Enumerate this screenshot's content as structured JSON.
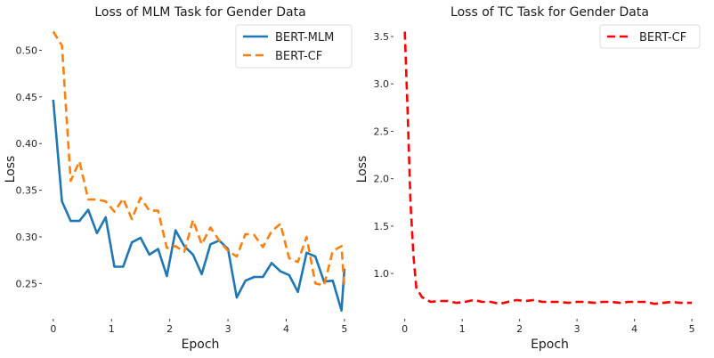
{
  "chart_data": [
    {
      "type": "line",
      "title": "Loss of MLM Task for Gender Data",
      "xlabel": "Epoch",
      "ylabel": "Loss",
      "xlim": [
        -0.15,
        5.2
      ],
      "ylim": [
        0.215,
        0.53
      ],
      "xticks": [
        "0",
        "1",
        "2",
        "3",
        "4",
        "5"
      ],
      "yticks": [
        "0.25",
        "0.30",
        "0.35",
        "0.40",
        "0.45",
        "0.50"
      ],
      "grid": false,
      "legend": "top-right",
      "series": [
        {
          "name": "BERT-MLM",
          "color": "#1f77b4",
          "style": "solid",
          "x": [
            0.0,
            0.15,
            0.3,
            0.45,
            0.6,
            0.75,
            0.9,
            1.05,
            1.2,
            1.35,
            1.5,
            1.65,
            1.8,
            1.95,
            2.1,
            2.25,
            2.4,
            2.55,
            2.7,
            2.85,
            3.0,
            3.15,
            3.3,
            3.45,
            3.6,
            3.75,
            3.9,
            4.05,
            4.2,
            4.35,
            4.5,
            4.65,
            4.8,
            4.95,
            5.0
          ],
          "y": [
            0.447,
            0.338,
            0.317,
            0.317,
            0.329,
            0.304,
            0.321,
            0.268,
            0.268,
            0.294,
            0.299,
            0.281,
            0.287,
            0.258,
            0.307,
            0.29,
            0.281,
            0.26,
            0.292,
            0.296,
            0.287,
            0.235,
            0.253,
            0.257,
            0.257,
            0.272,
            0.263,
            0.259,
            0.241,
            0.283,
            0.279,
            0.252,
            0.253,
            0.221,
            0.266
          ]
        },
        {
          "name": "BERT-CF",
          "color": "#ff7f0e",
          "style": "dashed",
          "x": [
            0.0,
            0.15,
            0.3,
            0.45,
            0.6,
            0.75,
            0.9,
            1.05,
            1.2,
            1.35,
            1.5,
            1.65,
            1.8,
            1.95,
            2.1,
            2.25,
            2.4,
            2.55,
            2.7,
            2.85,
            3.0,
            3.15,
            3.3,
            3.45,
            3.6,
            3.75,
            3.9,
            4.05,
            4.2,
            4.35,
            4.5,
            4.65,
            4.8,
            4.95,
            5.0
          ],
          "y": [
            0.52,
            0.505,
            0.36,
            0.381,
            0.34,
            0.34,
            0.338,
            0.327,
            0.341,
            0.319,
            0.342,
            0.328,
            0.328,
            0.288,
            0.29,
            0.284,
            0.318,
            0.292,
            0.31,
            0.296,
            0.285,
            0.279,
            0.303,
            0.302,
            0.289,
            0.306,
            0.314,
            0.277,
            0.273,
            0.3,
            0.25,
            0.248,
            0.285,
            0.29,
            0.245
          ]
        }
      ]
    },
    {
      "type": "line",
      "title": "Loss of TC Task for Gender Data",
      "xlabel": "Epoch",
      "ylabel": "Loss",
      "xlim": [
        -0.15,
        5.2
      ],
      "ylim": [
        0.55,
        3.65
      ],
      "xticks": [
        "0",
        "1",
        "2",
        "3",
        "4",
        "5"
      ],
      "yticks": [
        "1.0",
        "1.5",
        "2.0",
        "2.5",
        "3.0",
        "3.5"
      ],
      "grid": false,
      "legend": "top-right",
      "series": [
        {
          "name": "BERT-CF",
          "color": "#ff0000",
          "style": "dashed",
          "x": [
            0.0,
            0.05,
            0.1,
            0.15,
            0.2,
            0.3,
            0.45,
            0.6,
            0.75,
            0.9,
            1.05,
            1.2,
            1.35,
            1.5,
            1.65,
            1.8,
            1.95,
            2.1,
            2.25,
            2.4,
            2.55,
            2.7,
            2.85,
            3.0,
            3.15,
            3.3,
            3.45,
            3.6,
            3.75,
            3.9,
            4.05,
            4.2,
            4.35,
            4.5,
            4.65,
            4.8,
            4.95,
            5.0
          ],
          "y": [
            3.55,
            2.7,
            1.75,
            1.2,
            0.85,
            0.75,
            0.7,
            0.71,
            0.71,
            0.69,
            0.7,
            0.72,
            0.7,
            0.7,
            0.68,
            0.7,
            0.72,
            0.71,
            0.72,
            0.7,
            0.7,
            0.7,
            0.69,
            0.7,
            0.7,
            0.69,
            0.7,
            0.7,
            0.69,
            0.7,
            0.7,
            0.7,
            0.68,
            0.69,
            0.7,
            0.69,
            0.69,
            0.69
          ]
        }
      ]
    }
  ]
}
